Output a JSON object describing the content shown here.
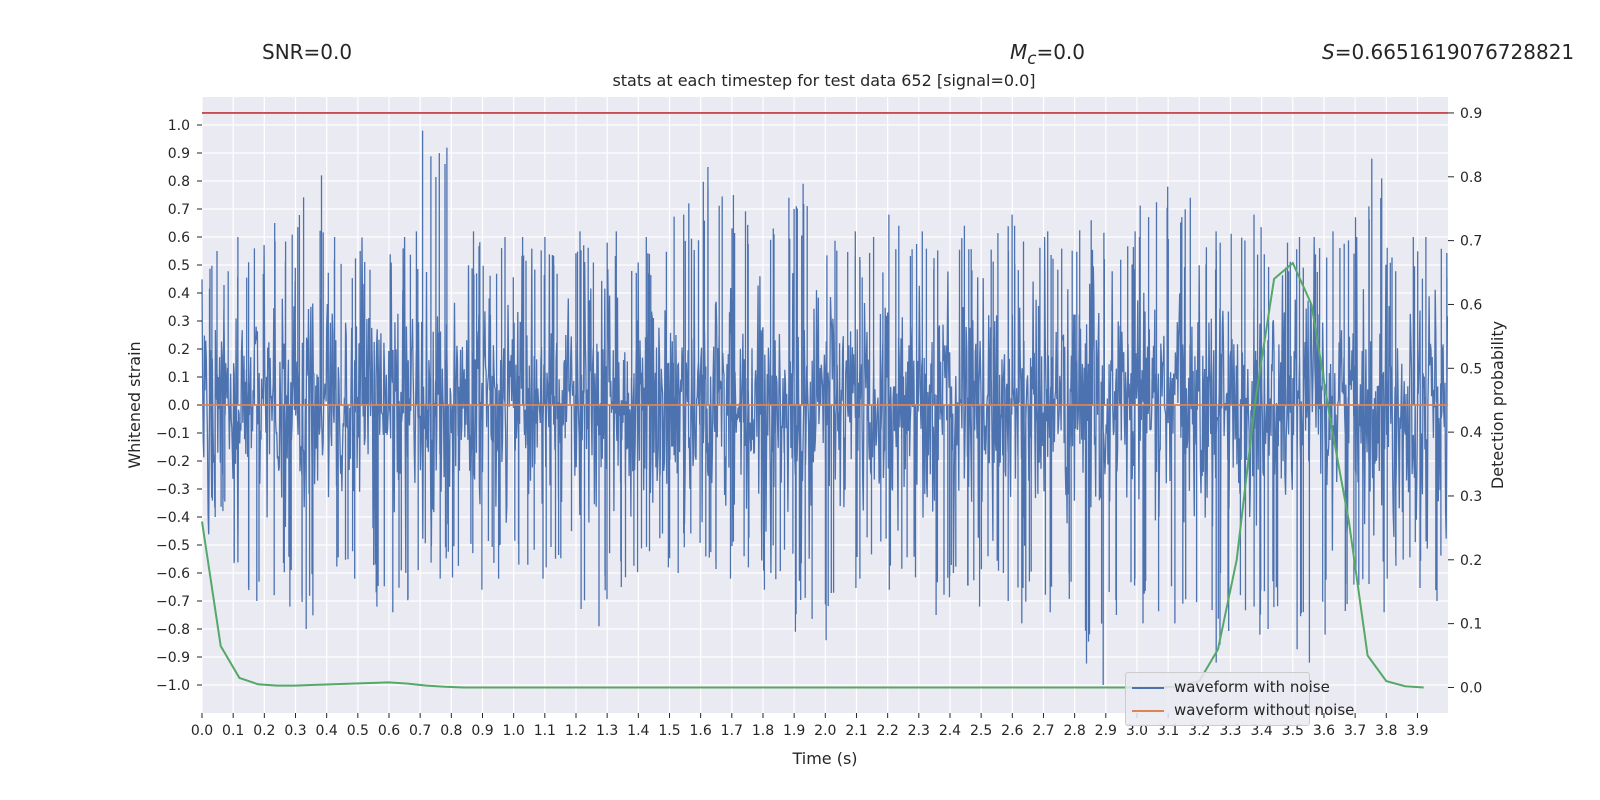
{
  "header": {
    "snr_label": "SNR=0.0",
    "mc_symbol": "M",
    "mc_sub": "c",
    "mc_value": "=0.0",
    "s_symbol": "S",
    "s_value": "=0.6651619076728821"
  },
  "chart_data": {
    "type": "line",
    "title": "stats at each timestep for test data 652 [signal=0.0]",
    "xlabel": "Time (s)",
    "ylabel": "Whitened strain",
    "y2label": "Detection probability",
    "xlim": [
      0.0,
      3.998
    ],
    "ylim": [
      -1.1,
      1.1
    ],
    "y2lim": [
      -0.04,
      0.925
    ],
    "x_ticks": [
      "0.0",
      "0.1",
      "0.2",
      "0.3",
      "0.4",
      "0.5",
      "0.6",
      "0.7",
      "0.8",
      "0.9",
      "1.0",
      "1.1",
      "1.2",
      "1.3",
      "1.4",
      "1.5",
      "1.6",
      "1.7",
      "1.8",
      "1.9",
      "2.0",
      "2.1",
      "2.2",
      "2.3",
      "2.4",
      "2.5",
      "2.6",
      "2.7",
      "2.8",
      "2.9",
      "3.0",
      "3.1",
      "3.2",
      "3.3",
      "3.4",
      "3.5",
      "3.6",
      "3.7",
      "3.8",
      "3.9"
    ],
    "y_ticks": [
      "-1.0",
      "-0.9",
      "-0.8",
      "-0.7",
      "-0.6",
      "-0.5",
      "-0.4",
      "-0.3",
      "-0.2",
      "-0.1",
      "0.0",
      "0.1",
      "0.2",
      "0.3",
      "0.4",
      "0.5",
      "0.6",
      "0.7",
      "0.8",
      "0.9",
      "1.0"
    ],
    "y2_ticks": [
      "0.0",
      "0.1",
      "0.2",
      "0.3",
      "0.4",
      "0.5",
      "0.6",
      "0.7",
      "0.8",
      "0.9"
    ],
    "threshold": 0.9,
    "series": [
      {
        "name": "waveform with noise",
        "color": "#4c72b0",
        "envelope_peaks": [
          [
            0.0,
            0.55,
            -0.4
          ],
          [
            0.1,
            0.6,
            -0.7
          ],
          [
            0.2,
            0.65,
            -0.72
          ],
          [
            0.3,
            0.82,
            -0.8
          ],
          [
            0.4,
            0.6,
            -0.62
          ],
          [
            0.5,
            0.55,
            -0.72
          ],
          [
            0.6,
            0.62,
            -0.74
          ],
          [
            0.7,
            0.98,
            -0.62
          ],
          [
            0.8,
            0.62,
            -0.66
          ],
          [
            0.9,
            0.6,
            -0.62
          ],
          [
            1.0,
            0.6,
            -0.62
          ],
          [
            1.1,
            0.6,
            -0.58
          ],
          [
            1.2,
            0.62,
            -0.79
          ],
          [
            1.3,
            0.62,
            -0.65
          ],
          [
            1.4,
            0.6,
            -0.58
          ],
          [
            1.5,
            0.72,
            -0.6
          ],
          [
            1.6,
            0.85,
            -0.62
          ],
          [
            1.7,
            0.75,
            -0.58
          ],
          [
            1.8,
            0.74,
            -0.66
          ],
          [
            1.9,
            0.79,
            -0.81
          ],
          [
            2.0,
            0.62,
            -0.84
          ],
          [
            2.1,
            0.6,
            -0.62
          ],
          [
            2.2,
            0.68,
            -0.66
          ],
          [
            2.3,
            0.62,
            -0.75
          ],
          [
            2.4,
            0.64,
            -0.72
          ],
          [
            2.5,
            0.68,
            -0.7
          ],
          [
            2.6,
            0.64,
            -0.78
          ],
          [
            2.7,
            0.62,
            -0.74
          ],
          [
            2.8,
            0.66,
            -1.0
          ],
          [
            2.9,
            0.62,
            -0.75
          ],
          [
            3.0,
            0.78,
            -0.78
          ],
          [
            3.1,
            0.74,
            -0.78
          ],
          [
            3.2,
            0.62,
            -0.92
          ],
          [
            3.3,
            0.68,
            -0.82
          ],
          [
            3.4,
            0.58,
            -0.8
          ],
          [
            3.5,
            0.6,
            -0.92
          ],
          [
            3.6,
            0.62,
            -0.82
          ],
          [
            3.7,
            0.88,
            -0.74
          ],
          [
            3.8,
            0.6,
            -0.62
          ],
          [
            3.9,
            0.6,
            -0.7
          ]
        ],
        "noise_std": 0.2
      },
      {
        "name": "waveform without noise",
        "color": "#dd8452",
        "x": [
          0.0,
          3.998
        ],
        "y": [
          0.0,
          0.0
        ]
      },
      {
        "name": "detection probability",
        "color": "#55a868",
        "axis": "right",
        "x": [
          0.0,
          0.06,
          0.12,
          0.18,
          0.24,
          0.3,
          0.36,
          0.42,
          0.48,
          0.54,
          0.6,
          0.66,
          0.72,
          0.78,
          0.84,
          1.0,
          2.0,
          3.0,
          3.08,
          3.14,
          3.2,
          3.26,
          3.32,
          3.38,
          3.44,
          3.5,
          3.56,
          3.62,
          3.68,
          3.74,
          3.8,
          3.86,
          3.92
        ],
        "y": [
          0.26,
          0.065,
          0.015,
          0.005,
          0.003,
          0.003,
          0.004,
          0.005,
          0.006,
          0.007,
          0.008,
          0.006,
          0.003,
          0.001,
          0.0,
          0.0,
          0.0,
          0.0,
          0.0,
          0.002,
          0.01,
          0.06,
          0.2,
          0.45,
          0.64,
          0.665,
          0.6,
          0.42,
          0.26,
          0.05,
          0.01,
          0.002,
          0.0
        ]
      }
    ],
    "threshold_color": "#c44e52",
    "legend_position": "lower-right"
  }
}
